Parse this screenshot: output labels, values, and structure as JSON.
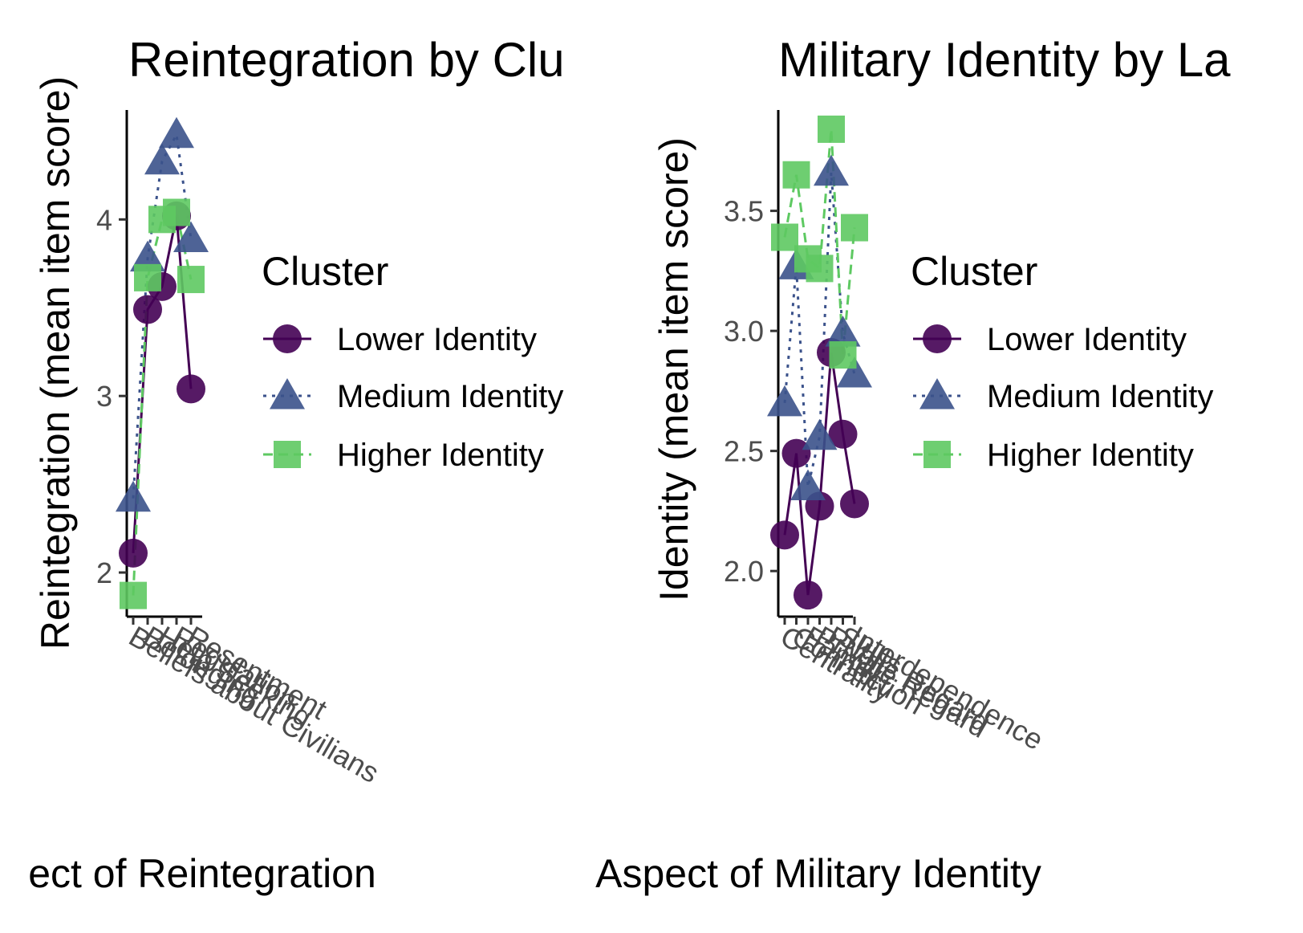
{
  "chart_data": [
    {
      "type": "line",
      "title": "Reintegration by Clu",
      "xlabel": "ect of Reintegration",
      "ylabel": "Reintegration (mean item score)",
      "categories": [
        "Beliefs about Civilians",
        "Belonging",
        "Help Seeking",
        "Regulation",
        "Resentment"
      ],
      "yticks": [
        "2",
        "3",
        "4"
      ],
      "ytick_values": [
        2,
        3,
        4
      ],
      "ylim": [
        1.75,
        4.62
      ],
      "grid": false,
      "legend": {
        "title": "Cluster",
        "position": "right",
        "entries": [
          "Lower Identity",
          "Medium Identity",
          "Higher Identity"
        ]
      },
      "series": [
        {
          "name": "Lower Identity",
          "color": "#440154",
          "marker": "circle",
          "linestyle": "solid",
          "values": [
            2.11,
            3.49,
            3.62,
            4.02,
            3.04
          ]
        },
        {
          "name": "Medium Identity",
          "color": "#3b528b",
          "marker": "triangle",
          "linestyle": "dotted",
          "values": [
            2.42,
            3.78,
            4.33,
            4.48,
            3.89
          ]
        },
        {
          "name": "Higher Identity",
          "color": "#5ec962",
          "marker": "square",
          "linestyle": "dashed",
          "values": [
            1.87,
            3.67,
            4.0,
            4.04,
            3.66
          ]
        }
      ]
    },
    {
      "type": "line",
      "title": "Military Identity by La",
      "xlabel": "Aspect of Military Identity",
      "ylabel": "Identity (mean item score)",
      "categories": [
        "Centrality",
        "Connection",
        "Family",
        "Private Regard",
        "Public Regard",
        "Skills",
        "Interdependence"
      ],
      "yticks": [
        "2.0",
        "2.5",
        "3.0",
        "3.5"
      ],
      "ytick_values": [
        2.0,
        2.5,
        3.0,
        3.5
      ],
      "ylim": [
        1.81,
        3.92
      ],
      "grid": false,
      "legend": {
        "title": "Cluster",
        "position": "right",
        "entries": [
          "Lower Identity",
          "Medium Identity",
          "Higher Identity"
        ]
      },
      "series": [
        {
          "name": "Lower Identity",
          "color": "#440154",
          "marker": "circle",
          "linestyle": "solid",
          "values": [
            2.15,
            2.49,
            1.9,
            2.27,
            2.91,
            2.57,
            2.28
          ]
        },
        {
          "name": "Medium Identity",
          "color": "#3b528b",
          "marker": "triangle",
          "linestyle": "dotted",
          "values": [
            2.7,
            3.27,
            2.35,
            2.56,
            3.66,
            2.99,
            2.82
          ]
        },
        {
          "name": "Higher Identity",
          "color": "#5ec962",
          "marker": "square",
          "linestyle": "dashed",
          "values": [
            3.39,
            3.65,
            3.3,
            3.26,
            3.84,
            2.9,
            3.43
          ]
        }
      ]
    }
  ]
}
